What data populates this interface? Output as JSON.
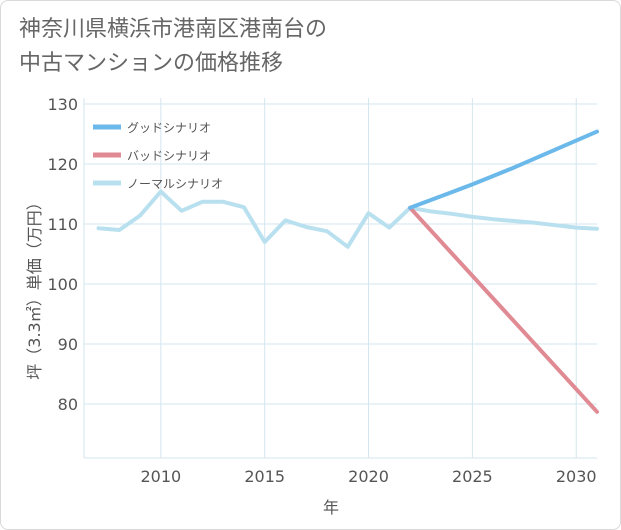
{
  "chart_data": {
    "type": "line",
    "title": "神奈川県横浜市港南区港南台の中古マンションの価格推移",
    "title_lines": [
      "神奈川県横浜市港南区港南台の",
      "中古マンションの価格推移"
    ],
    "xlabel": "年",
    "ylabel": "坪（3.3㎡）単価（万円）",
    "xlim": [
      2006.3,
      2031
    ],
    "ylim": [
      71,
      131
    ],
    "x_ticks": [
      2010,
      2015,
      2020,
      2025,
      2030
    ],
    "y_ticks": [
      80,
      90,
      100,
      110,
      120,
      130
    ],
    "grid": true,
    "legend_position": "top-left",
    "series": [
      {
        "name": "グッドシナリオ",
        "color": "#6bb8ea",
        "x": [
          2022,
          2023,
          2024,
          2025,
          2026,
          2027,
          2028,
          2029,
          2030,
          2031
        ],
        "y": [
          112.7,
          114.0,
          115.3,
          116.6,
          118.0,
          119.4,
          120.9,
          122.4,
          123.9,
          125.4
        ]
      },
      {
        "name": "バッドシナリオ",
        "color": "#e08a94",
        "x": [
          2022,
          2031
        ],
        "y": [
          112.7,
          78.7
        ]
      },
      {
        "name": "ノーマルシナリオ",
        "color": "#b9e0ef",
        "x": [
          2007,
          2008,
          2009,
          2010,
          2011,
          2012,
          2013,
          2014,
          2015,
          2016,
          2017,
          2018,
          2019,
          2020,
          2021,
          2022,
          2023,
          2024,
          2025,
          2026,
          2027,
          2028,
          2029,
          2030,
          2031
        ],
        "y": [
          109.3,
          109.0,
          111.4,
          115.4,
          112.2,
          113.7,
          113.7,
          112.8,
          107.0,
          110.6,
          109.5,
          108.8,
          106.2,
          111.8,
          109.4,
          112.7,
          112.1,
          111.7,
          111.2,
          110.8,
          110.5,
          110.2,
          109.8,
          109.4,
          109.2
        ]
      }
    ]
  }
}
